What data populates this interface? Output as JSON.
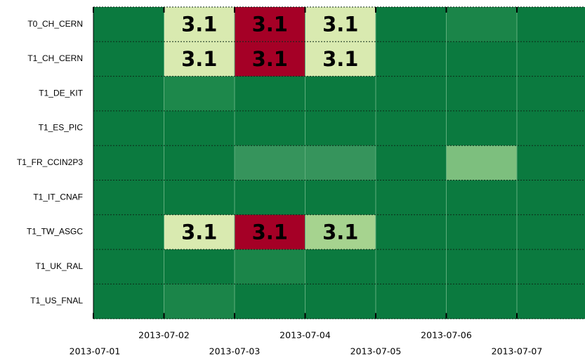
{
  "chart_data": {
    "type": "heatmap",
    "rows": [
      "T0_CH_CERN",
      "T1_CH_CERN",
      "T1_DE_KIT",
      "T1_ES_PIC",
      "T1_FR_CCIN2P3",
      "T1_IT_CNAF",
      "T1_TW_ASGC",
      "T1_UK_RAL",
      "T1_US_FNAL"
    ],
    "columns": [
      "2013-07-01",
      "2013-07-02",
      "2013-07-03",
      "2013-07-04",
      "2013-07-05",
      "2013-07-06",
      "2013-07-07"
    ],
    "colors": [
      [
        "#0b7a3f",
        "#d9eab0",
        "#a50026",
        "#d9eab0",
        "#0b7a3f",
        "#1b8549",
        "#0b7a3f"
      ],
      [
        "#0b7a3f",
        "#d9eab0",
        "#a50026",
        "#d9eab0",
        "#0b7a3f",
        "#0b7a3f",
        "#0b7a3f"
      ],
      [
        "#0b7a3f",
        "#1d884b",
        "#0b7a3f",
        "#0b7a3f",
        "#0b7a3f",
        "#0b7a3f",
        "#0b7a3f"
      ],
      [
        "#0b7a3f",
        "#0b7a3f",
        "#0b7a3f",
        "#0b7a3f",
        "#0b7a3f",
        "#0b7a3f",
        "#0b7a3f"
      ],
      [
        "#0b7a3f",
        "#0b7a3f",
        "#36945c",
        "#36945c",
        "#0b7a3f",
        "#7dbf7e",
        "#0b7a3f"
      ],
      [
        "#0b7a3f",
        "#0b7a3f",
        "#0b7a3f",
        "#0b7a3f",
        "#0b7a3f",
        "#0b7a3f",
        "#0b7a3f"
      ],
      [
        "#0b7a3f",
        "#d9eab0",
        "#a50026",
        "#a6d38f",
        "#0b7a3f",
        "#0b7a3f",
        "#0b7a3f"
      ],
      [
        "#0b7a3f",
        "#0b7a3f",
        "#1b8549",
        "#0b7a3f",
        "#0b7a3f",
        "#0b7a3f",
        "#0b7a3f"
      ],
      [
        "#0b7a3f",
        "#1b8549",
        "#0b7a3f",
        "#0b7a3f",
        "#0b7a3f",
        "#0b7a3f",
        "#0b7a3f"
      ]
    ],
    "cell_labels": [
      [
        null,
        "3.1",
        "3.1",
        "3.1",
        null,
        null,
        null
      ],
      [
        null,
        "3.1",
        "3.1",
        "3.1",
        null,
        null,
        null
      ],
      [
        null,
        null,
        null,
        null,
        null,
        null,
        null
      ],
      [
        null,
        null,
        null,
        null,
        null,
        null,
        null
      ],
      [
        null,
        null,
        null,
        null,
        null,
        null,
        null
      ],
      [
        null,
        null,
        null,
        null,
        null,
        null,
        null
      ],
      [
        null,
        "3.1",
        "3.1",
        "3.1",
        null,
        null,
        null
      ],
      [
        null,
        null,
        null,
        null,
        null,
        null,
        null
      ],
      [
        null,
        null,
        null,
        null,
        null,
        null,
        null
      ]
    ]
  }
}
